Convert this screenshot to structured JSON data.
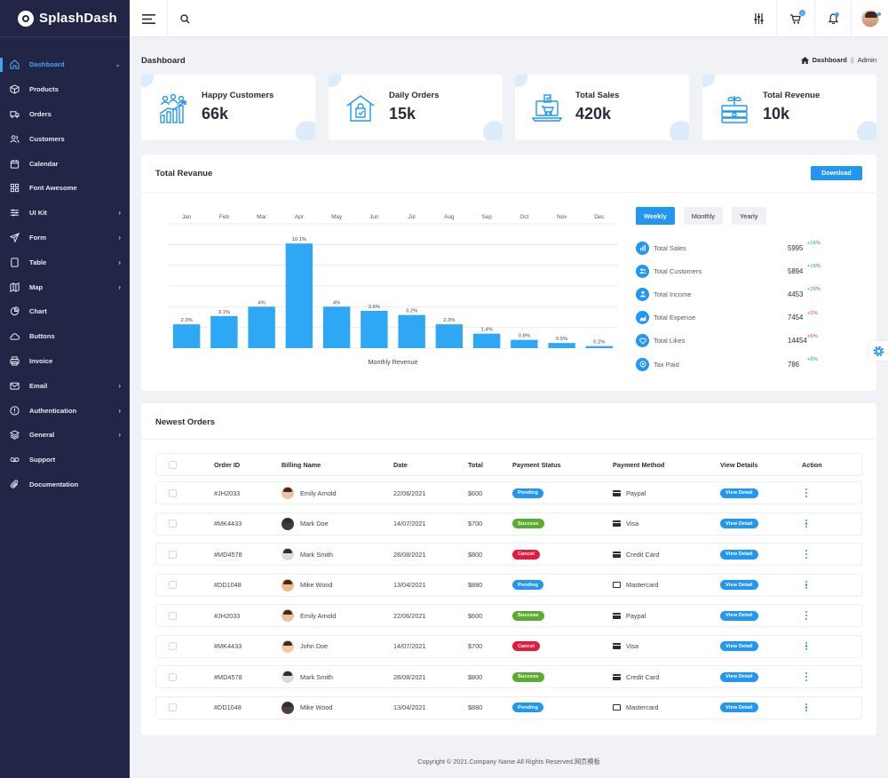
{
  "brand": {
    "name": "SplashDash"
  },
  "sidebar": {
    "items": [
      {
        "label": "Dashboard",
        "icon": "home-icon",
        "chevron": "⌄",
        "active": true
      },
      {
        "label": "Products",
        "icon": "box-icon",
        "chevron": ""
      },
      {
        "label": "Orders",
        "icon": "truck-icon",
        "chevron": ""
      },
      {
        "label": "Customers",
        "icon": "users-icon",
        "chevron": ""
      },
      {
        "label": "Calendar",
        "icon": "calendar-icon",
        "chevron": ""
      },
      {
        "label": "Font Awesome",
        "icon": "grid-icon",
        "chevron": ""
      },
      {
        "label": "UI Kit",
        "icon": "sliders-icon",
        "chevron": "›"
      },
      {
        "label": "Form",
        "icon": "send-icon",
        "chevron": "›"
      },
      {
        "label": "Table",
        "icon": "table-icon",
        "chevron": "›"
      },
      {
        "label": "Map",
        "icon": "map-icon",
        "chevron": "›"
      },
      {
        "label": "Chart",
        "icon": "pie-chart-icon",
        "chevron": ""
      },
      {
        "label": "Buttons",
        "icon": "cloud-icon",
        "chevron": ""
      },
      {
        "label": "Invoice",
        "icon": "printer-icon",
        "chevron": ""
      },
      {
        "label": "Email",
        "icon": "mail-icon",
        "chevron": "›"
      },
      {
        "label": "Authentication",
        "icon": "info-icon",
        "chevron": "›"
      },
      {
        "label": "General",
        "icon": "layers-icon",
        "chevron": "›"
      },
      {
        "label": "Support",
        "icon": "voicemail-icon",
        "chevron": ""
      },
      {
        "label": "Documentation",
        "icon": "paperclip-icon",
        "chevron": ""
      }
    ]
  },
  "topbar": {
    "cart_badge": "2"
  },
  "page": {
    "title": "Dashboard",
    "breadcrumb_home": "Dashboard",
    "breadcrumb_sep": "||",
    "breadcrumb_current": "Admin"
  },
  "stats": [
    {
      "label": "Happy Customers",
      "value": "66k",
      "icon": "growth-chart-icon"
    },
    {
      "label": "Daily Orders",
      "value": "15k",
      "icon": "shop-icon"
    },
    {
      "label": "Total Sales",
      "value": "420k",
      "icon": "laptop-cart-icon"
    },
    {
      "label": "Total Revenue",
      "value": "10k",
      "icon": "money-plant-icon"
    }
  ],
  "revenue_panel": {
    "title": "Total Revanue",
    "download_label": "Download",
    "periods": [
      "Weekly",
      "Monthly",
      "Yearly"
    ],
    "active_period": "Weekly",
    "metrics": [
      {
        "label": "Total Sales",
        "value": "5995",
        "change": "+15%",
        "color": "#1ba83b",
        "icon": "chart-icon"
      },
      {
        "label": "Total Customers",
        "value": "5894",
        "change": "+15%",
        "color": "#1ba83b",
        "icon": "users-icon"
      },
      {
        "label": "Total Income",
        "value": "4453",
        "change": "+25%",
        "color": "#1ba83b",
        "icon": "person-icon"
      },
      {
        "label": "Total Expense",
        "value": "7454",
        "change": "+2%",
        "color": "#e53935",
        "icon": "area-chart-icon"
      },
      {
        "label": "Total Likes",
        "value": "14454",
        "change": "+5%",
        "color": "#e53935",
        "icon": "heart-icon"
      },
      {
        "label": "Tax Paid",
        "value": "786",
        "change": "+5%",
        "color": "#1ba83b",
        "icon": "coin-icon"
      }
    ]
  },
  "chart_data": {
    "type": "bar",
    "categories": [
      "Jan",
      "Feb",
      "Mar",
      "Apr",
      "May",
      "Jun",
      "Jul",
      "Aug",
      "Sep",
      "Oct",
      "Nov",
      "Dec"
    ],
    "values": [
      2.3,
      3.1,
      4,
      10.1,
      4,
      3.6,
      3.2,
      2.3,
      1.4,
      0.8,
      0.5,
      0.2
    ],
    "data_labels": [
      "2.3%",
      "3.1%",
      "4%",
      "10.1%",
      "4%",
      "3.6%",
      "3.2%",
      "2.3%",
      "1.4%",
      "0.8%",
      "0.5%",
      "0.2%"
    ],
    "title": "",
    "xlabel": "Monthly Revenue",
    "ylabel": "",
    "ylim": [
      0,
      12
    ],
    "grid": true,
    "bar_color": "#2ea7f5"
  },
  "orders": {
    "title": "Newest Orders",
    "columns": [
      "Order ID",
      "Billing Name",
      "Date",
      "Total",
      "Payment Status",
      "Payment Method",
      "View Details",
      "Action"
    ],
    "view_label": "View Detail",
    "rows": [
      {
        "id": "#JH2033",
        "name": "Emily Arnold",
        "date": "22/06/2021",
        "total": "$600",
        "status": "Pending",
        "method": "Paypal",
        "method_icon": "card-icon"
      },
      {
        "id": "#MK4433",
        "name": "Mark Doe",
        "date": "14/07/2021",
        "total": "$700",
        "status": "Success",
        "method": "Visa",
        "method_icon": "card-icon"
      },
      {
        "id": "#MD4578",
        "name": "Mark Smith",
        "date": "28/08/2021",
        "total": "$800",
        "status": "Cancel",
        "method": "Credit Card",
        "method_icon": "card-icon"
      },
      {
        "id": "#DD1048",
        "name": "Mike Wood",
        "date": "13/04/2021",
        "total": "$880",
        "status": "Pending",
        "method": "Mastercard",
        "method_icon": "mastercard-icon"
      },
      {
        "id": "#JH2033",
        "name": "Emily Arnold",
        "date": "22/06/2021",
        "total": "$600",
        "status": "Success",
        "method": "Paypal",
        "method_icon": "card-icon"
      },
      {
        "id": "#MK4433",
        "name": "John Doe",
        "date": "14/07/2021",
        "total": "$700",
        "status": "Cancel",
        "method": "Visa",
        "method_icon": "card-icon"
      },
      {
        "id": "#MD4578",
        "name": "Mark Smith",
        "date": "28/08/2021",
        "total": "$800",
        "status": "Success",
        "method": "Credit Card",
        "method_icon": "card-icon"
      },
      {
        "id": "#DD1048",
        "name": "Mike Wood",
        "date": "13/04/2021",
        "total": "$880",
        "status": "Pending",
        "method": "Mastercard",
        "method_icon": "mastercard-icon"
      }
    ]
  },
  "status_colors": {
    "Pending": "#2196f3",
    "Success": "#5aab2f",
    "Cancel": "#e5193c"
  },
  "footer": {
    "text": "Copyright © 2021.Company Name All Rights Reserved.网页模板"
  }
}
